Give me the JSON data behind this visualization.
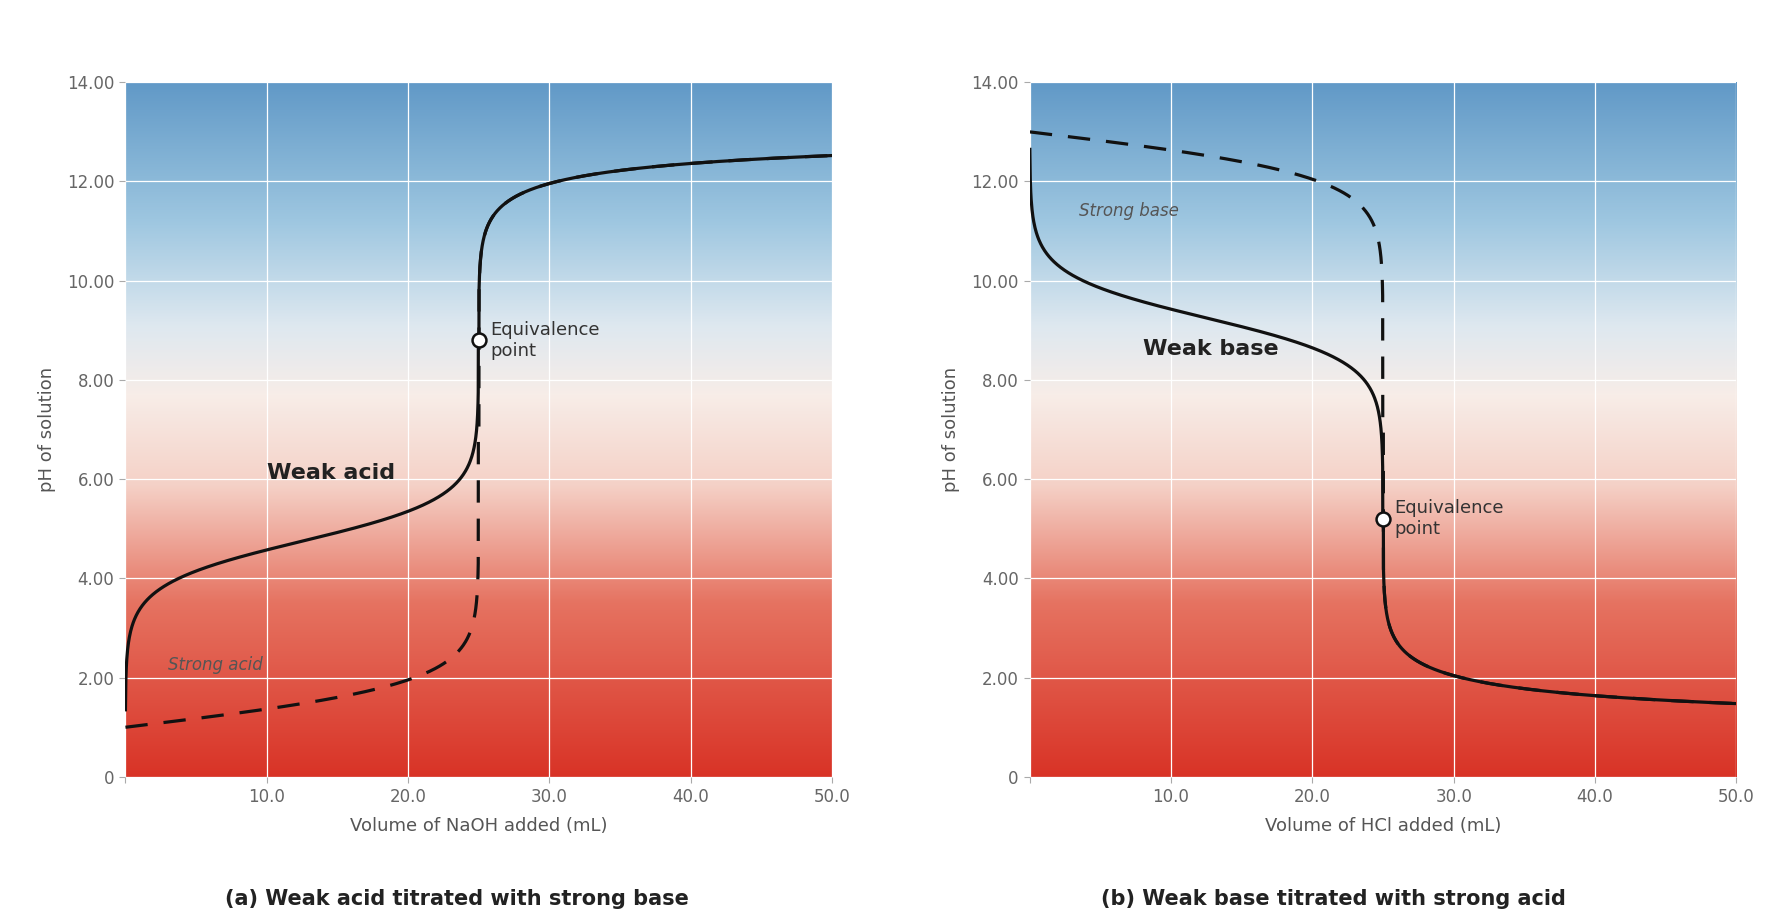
{
  "fig_width": 17.9,
  "fig_height": 9.14,
  "background_color": "#ffffff",
  "xlim": [
    0,
    50
  ],
  "ylim": [
    0,
    14
  ],
  "yticks": [
    0,
    2.0,
    4.0,
    6.0,
    8.0,
    10.0,
    12.0,
    14.0
  ],
  "xticks": [
    0,
    10.0,
    20.0,
    30.0,
    40.0,
    50.0
  ],
  "ylabel": "pH of solution",
  "xlabel_a": "Volume of NaOH added (mL)",
  "xlabel_b": "Volume of HCl added (mL)",
  "title_a": "(a) Weak acid titrated with strong base",
  "title_b": "(b) Weak base titrated with strong acid",
  "label_weak_acid": "Weak acid",
  "label_strong_acid": "Strong acid",
  "label_weak_base": "Weak base",
  "label_strong_base": "Strong base",
  "label_equiv": "Equivalence\npoint",
  "equiv_point_a": [
    25.0,
    8.8
  ],
  "equiv_point_b": [
    25.0,
    5.2
  ],
  "curve_color": "#111111",
  "equiv_marker_color": "#ffffff",
  "equiv_marker_edge": "#111111",
  "text_color": "#333333",
  "title_fontsize": 15,
  "label_fontsize": 13,
  "axis_label_fontsize": 13,
  "tick_fontsize": 12,
  "gradient_colors": [
    [
      0.0,
      [
        0.85,
        0.2,
        0.15,
        1.0
      ]
    ],
    [
      0.25,
      [
        0.9,
        0.45,
        0.38,
        1.0
      ]
    ],
    [
      0.42,
      [
        0.96,
        0.82,
        0.78,
        1.0
      ]
    ],
    [
      0.55,
      [
        0.97,
        0.93,
        0.91,
        1.0
      ]
    ],
    [
      0.65,
      [
        0.87,
        0.91,
        0.94,
        1.0
      ]
    ],
    [
      0.8,
      [
        0.62,
        0.78,
        0.88,
        1.0
      ]
    ],
    [
      1.0,
      [
        0.38,
        0.6,
        0.78,
        1.0
      ]
    ]
  ]
}
